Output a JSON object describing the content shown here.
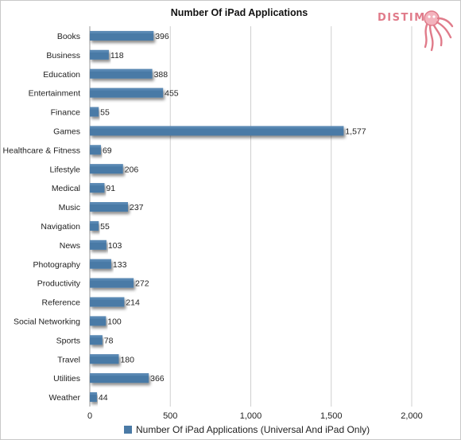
{
  "logo": {
    "text": "DISTIMO",
    "icon": "octopus-icon",
    "color": "#e07b8a"
  },
  "colors": {
    "bar": "#4a7aa6",
    "bar_top": "#5e8cb6",
    "grid": "#cfcfcf"
  },
  "chart_data": {
    "type": "bar",
    "orientation": "horizontal",
    "title": "Number Of iPad Applications",
    "categories": [
      "Books",
      "Business",
      "Education",
      "Entertainment",
      "Finance",
      "Games",
      "Healthcare & Fitness",
      "Lifestyle",
      "Medical",
      "Music",
      "Navigation",
      "News",
      "Photography",
      "Productivity",
      "Reference",
      "Social Networking",
      "Sports",
      "Travel",
      "Utilities",
      "Weather"
    ],
    "series": [
      {
        "name": "Number Of iPad Applications (Universal And iPad Only)",
        "values": [
          396,
          118,
          388,
          455,
          55,
          1577,
          69,
          206,
          91,
          237,
          55,
          103,
          133,
          272,
          214,
          100,
          78,
          180,
          366,
          44
        ],
        "labels": [
          "396",
          "118",
          "388",
          "455",
          "55",
          "1,577",
          "69",
          "206",
          "91",
          "237",
          "55",
          "103",
          "133",
          "272",
          "214",
          "100",
          "78",
          "180",
          "366",
          "44"
        ]
      }
    ],
    "xlim": [
      0,
      2000
    ],
    "xticks": [
      0,
      500,
      1000,
      1500,
      2000
    ],
    "xtick_labels": [
      "0",
      "500",
      "1,000",
      "1,500",
      "2,000"
    ],
    "grid": true,
    "legend": "bottom"
  }
}
